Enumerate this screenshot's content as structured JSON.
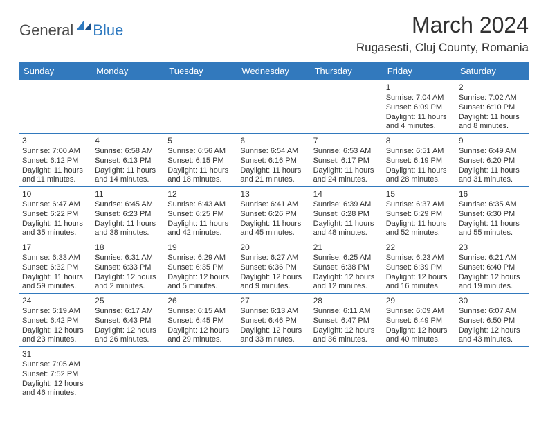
{
  "logo": {
    "text1": "General",
    "text2": "Blue"
  },
  "colors": {
    "headerBg": "#3279bd",
    "rowBorder": "#3279bd",
    "logoBlue": "#2f7ac0",
    "logoDark": "#4a4a4a",
    "text": "#323232",
    "white": "#ffffff"
  },
  "title": "March 2024",
  "location": "Rugasesti, Cluj County, Romania",
  "weekdays": [
    "Sunday",
    "Monday",
    "Tuesday",
    "Wednesday",
    "Thursday",
    "Friday",
    "Saturday"
  ],
  "weeks": [
    [
      null,
      null,
      null,
      null,
      null,
      {
        "day": "1",
        "sunrise": "Sunrise: 7:04 AM",
        "sunset": "Sunset: 6:09 PM",
        "daylight1": "Daylight: 11 hours",
        "daylight2": "and 4 minutes."
      },
      {
        "day": "2",
        "sunrise": "Sunrise: 7:02 AM",
        "sunset": "Sunset: 6:10 PM",
        "daylight1": "Daylight: 11 hours",
        "daylight2": "and 8 minutes."
      }
    ],
    [
      {
        "day": "3",
        "sunrise": "Sunrise: 7:00 AM",
        "sunset": "Sunset: 6:12 PM",
        "daylight1": "Daylight: 11 hours",
        "daylight2": "and 11 minutes."
      },
      {
        "day": "4",
        "sunrise": "Sunrise: 6:58 AM",
        "sunset": "Sunset: 6:13 PM",
        "daylight1": "Daylight: 11 hours",
        "daylight2": "and 14 minutes."
      },
      {
        "day": "5",
        "sunrise": "Sunrise: 6:56 AM",
        "sunset": "Sunset: 6:15 PM",
        "daylight1": "Daylight: 11 hours",
        "daylight2": "and 18 minutes."
      },
      {
        "day": "6",
        "sunrise": "Sunrise: 6:54 AM",
        "sunset": "Sunset: 6:16 PM",
        "daylight1": "Daylight: 11 hours",
        "daylight2": "and 21 minutes."
      },
      {
        "day": "7",
        "sunrise": "Sunrise: 6:53 AM",
        "sunset": "Sunset: 6:17 PM",
        "daylight1": "Daylight: 11 hours",
        "daylight2": "and 24 minutes."
      },
      {
        "day": "8",
        "sunrise": "Sunrise: 6:51 AM",
        "sunset": "Sunset: 6:19 PM",
        "daylight1": "Daylight: 11 hours",
        "daylight2": "and 28 minutes."
      },
      {
        "day": "9",
        "sunrise": "Sunrise: 6:49 AM",
        "sunset": "Sunset: 6:20 PM",
        "daylight1": "Daylight: 11 hours",
        "daylight2": "and 31 minutes."
      }
    ],
    [
      {
        "day": "10",
        "sunrise": "Sunrise: 6:47 AM",
        "sunset": "Sunset: 6:22 PM",
        "daylight1": "Daylight: 11 hours",
        "daylight2": "and 35 minutes."
      },
      {
        "day": "11",
        "sunrise": "Sunrise: 6:45 AM",
        "sunset": "Sunset: 6:23 PM",
        "daylight1": "Daylight: 11 hours",
        "daylight2": "and 38 minutes."
      },
      {
        "day": "12",
        "sunrise": "Sunrise: 6:43 AM",
        "sunset": "Sunset: 6:25 PM",
        "daylight1": "Daylight: 11 hours",
        "daylight2": "and 42 minutes."
      },
      {
        "day": "13",
        "sunrise": "Sunrise: 6:41 AM",
        "sunset": "Sunset: 6:26 PM",
        "daylight1": "Daylight: 11 hours",
        "daylight2": "and 45 minutes."
      },
      {
        "day": "14",
        "sunrise": "Sunrise: 6:39 AM",
        "sunset": "Sunset: 6:28 PM",
        "daylight1": "Daylight: 11 hours",
        "daylight2": "and 48 minutes."
      },
      {
        "day": "15",
        "sunrise": "Sunrise: 6:37 AM",
        "sunset": "Sunset: 6:29 PM",
        "daylight1": "Daylight: 11 hours",
        "daylight2": "and 52 minutes."
      },
      {
        "day": "16",
        "sunrise": "Sunrise: 6:35 AM",
        "sunset": "Sunset: 6:30 PM",
        "daylight1": "Daylight: 11 hours",
        "daylight2": "and 55 minutes."
      }
    ],
    [
      {
        "day": "17",
        "sunrise": "Sunrise: 6:33 AM",
        "sunset": "Sunset: 6:32 PM",
        "daylight1": "Daylight: 11 hours",
        "daylight2": "and 59 minutes."
      },
      {
        "day": "18",
        "sunrise": "Sunrise: 6:31 AM",
        "sunset": "Sunset: 6:33 PM",
        "daylight1": "Daylight: 12 hours",
        "daylight2": "and 2 minutes."
      },
      {
        "day": "19",
        "sunrise": "Sunrise: 6:29 AM",
        "sunset": "Sunset: 6:35 PM",
        "daylight1": "Daylight: 12 hours",
        "daylight2": "and 5 minutes."
      },
      {
        "day": "20",
        "sunrise": "Sunrise: 6:27 AM",
        "sunset": "Sunset: 6:36 PM",
        "daylight1": "Daylight: 12 hours",
        "daylight2": "and 9 minutes."
      },
      {
        "day": "21",
        "sunrise": "Sunrise: 6:25 AM",
        "sunset": "Sunset: 6:38 PM",
        "daylight1": "Daylight: 12 hours",
        "daylight2": "and 12 minutes."
      },
      {
        "day": "22",
        "sunrise": "Sunrise: 6:23 AM",
        "sunset": "Sunset: 6:39 PM",
        "daylight1": "Daylight: 12 hours",
        "daylight2": "and 16 minutes."
      },
      {
        "day": "23",
        "sunrise": "Sunrise: 6:21 AM",
        "sunset": "Sunset: 6:40 PM",
        "daylight1": "Daylight: 12 hours",
        "daylight2": "and 19 minutes."
      }
    ],
    [
      {
        "day": "24",
        "sunrise": "Sunrise: 6:19 AM",
        "sunset": "Sunset: 6:42 PM",
        "daylight1": "Daylight: 12 hours",
        "daylight2": "and 23 minutes."
      },
      {
        "day": "25",
        "sunrise": "Sunrise: 6:17 AM",
        "sunset": "Sunset: 6:43 PM",
        "daylight1": "Daylight: 12 hours",
        "daylight2": "and 26 minutes."
      },
      {
        "day": "26",
        "sunrise": "Sunrise: 6:15 AM",
        "sunset": "Sunset: 6:45 PM",
        "daylight1": "Daylight: 12 hours",
        "daylight2": "and 29 minutes."
      },
      {
        "day": "27",
        "sunrise": "Sunrise: 6:13 AM",
        "sunset": "Sunset: 6:46 PM",
        "daylight1": "Daylight: 12 hours",
        "daylight2": "and 33 minutes."
      },
      {
        "day": "28",
        "sunrise": "Sunrise: 6:11 AM",
        "sunset": "Sunset: 6:47 PM",
        "daylight1": "Daylight: 12 hours",
        "daylight2": "and 36 minutes."
      },
      {
        "day": "29",
        "sunrise": "Sunrise: 6:09 AM",
        "sunset": "Sunset: 6:49 PM",
        "daylight1": "Daylight: 12 hours",
        "daylight2": "and 40 minutes."
      },
      {
        "day": "30",
        "sunrise": "Sunrise: 6:07 AM",
        "sunset": "Sunset: 6:50 PM",
        "daylight1": "Daylight: 12 hours",
        "daylight2": "and 43 minutes."
      }
    ],
    [
      {
        "day": "31",
        "sunrise": "Sunrise: 7:05 AM",
        "sunset": "Sunset: 7:52 PM",
        "daylight1": "Daylight: 12 hours",
        "daylight2": "and 46 minutes."
      },
      null,
      null,
      null,
      null,
      null,
      null
    ]
  ]
}
